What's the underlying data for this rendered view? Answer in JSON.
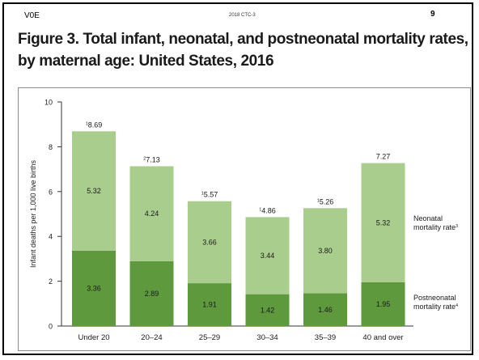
{
  "header": {
    "left": "V0E",
    "center": "2018 CTC-3",
    "page_number": "9"
  },
  "title_lines": [
    "Figure 3. Total infant, neonatal, and postneonatal mortality rates,",
    "by maternal age: United States, 2016"
  ],
  "colors": {
    "neonatal": "#a9cd8d",
    "postneonatal": "#5e9a3d"
  },
  "chart_data": {
    "type": "bar",
    "stacked": true,
    "ylabel": "Infant deaths per 1,000 live births",
    "ylim": [
      0,
      10
    ],
    "yticks": [
      0,
      2,
      4,
      6,
      8,
      10
    ],
    "grid": false,
    "categories": [
      "Under 20",
      "20–24",
      "25–29",
      "30–34",
      "35–39",
      "40 and over"
    ],
    "series": [
      {
        "name": "Postneonatal mortality rate",
        "footnote": "4",
        "values": [
          3.36,
          2.89,
          1.91,
          1.42,
          1.46,
          1.95
        ]
      },
      {
        "name": "Neonatal mortality rate",
        "footnote": "3",
        "values": [
          5.32,
          4.24,
          3.66,
          3.44,
          3.8,
          5.32
        ]
      }
    ],
    "totals": [
      8.69,
      7.13,
      5.57,
      4.86,
      5.26,
      7.27
    ],
    "total_labels": [
      "8.69",
      "7.13",
      "5.57",
      "4.86",
      "5.26",
      "7.27"
    ],
    "total_footnotes": [
      "1",
      "2",
      "1",
      "1",
      "1",
      ""
    ],
    "value_labels": {
      "postneonatal": [
        "3.36",
        "2.89",
        "1.91",
        "1.42",
        "1.46",
        "1.95"
      ],
      "neonatal": [
        "5.32",
        "4.24",
        "3.66",
        "3.44",
        "3.80",
        "5.32"
      ]
    },
    "legend_placement": "right",
    "legend": [
      {
        "series": "neonatal",
        "lines": [
          "Neonatal",
          "mortality rate"
        ],
        "footnote": "3"
      },
      {
        "series": "postneonatal",
        "lines": [
          "Postneonatal",
          "mortality rate"
        ],
        "footnote": "4"
      }
    ]
  }
}
